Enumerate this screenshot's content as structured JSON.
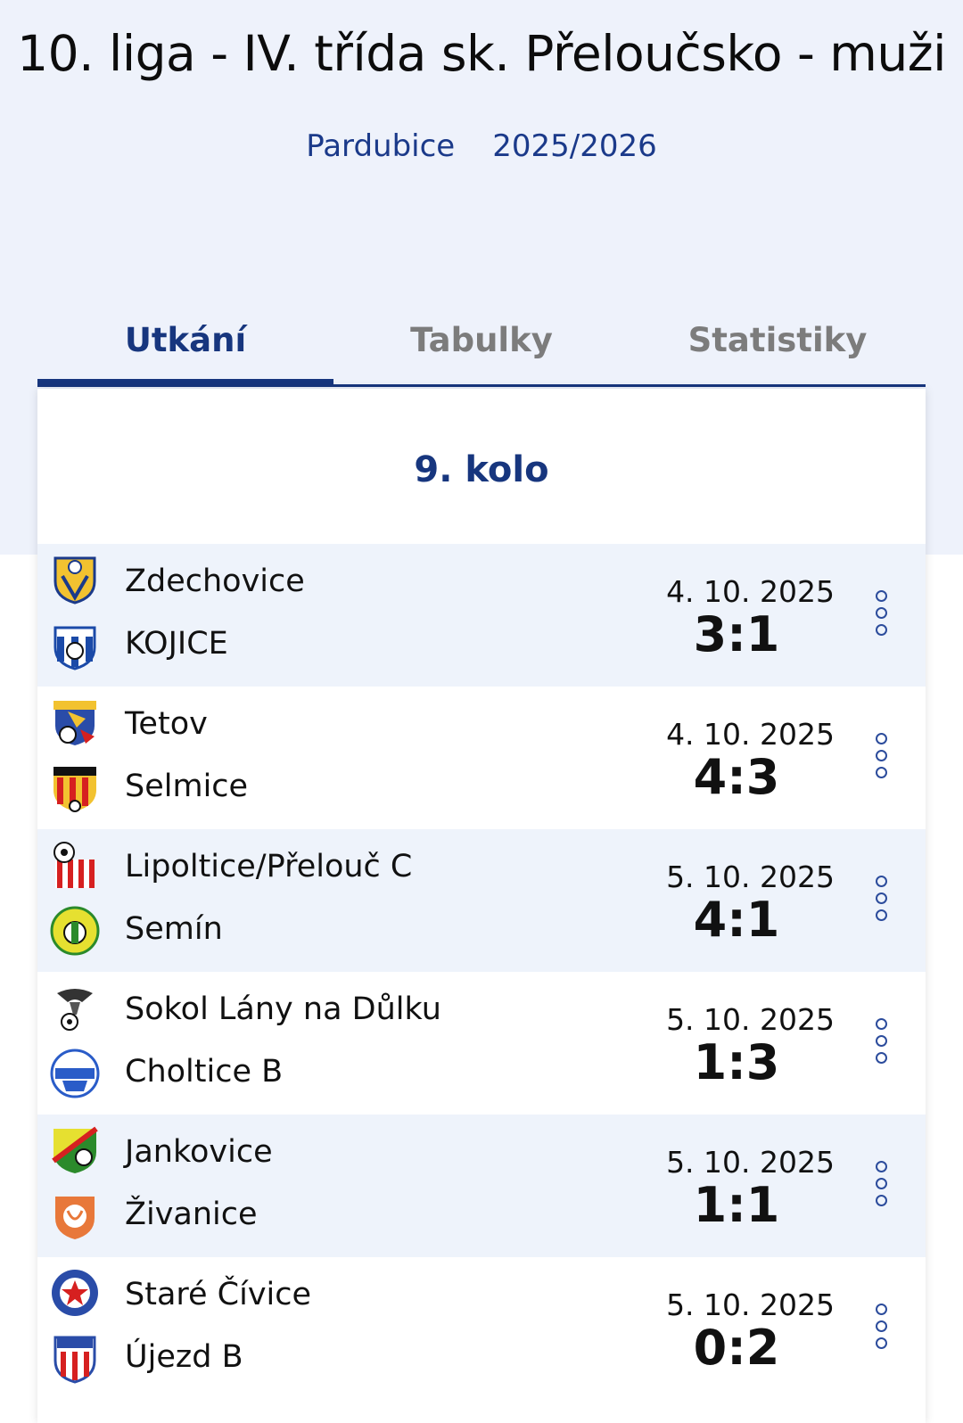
{
  "header": {
    "title": "10. liga - IV. třída sk. Přeloučsko - muži",
    "region": "Pardubice",
    "season": "2025/2026"
  },
  "tabs": [
    {
      "label": "Utkání",
      "active": true
    },
    {
      "label": "Tabulky",
      "active": false
    },
    {
      "label": "Statistiky",
      "active": false
    }
  ],
  "round": {
    "label": "9. kolo"
  },
  "matches": [
    {
      "home": "Zdechovice",
      "away": "KOJICE",
      "date": "4. 10. 2025",
      "score": "3:1",
      "home_logo": "zdechovice-crest-icon",
      "away_logo": "kojice-crest-icon"
    },
    {
      "home": "Tetov",
      "away": "Selmice",
      "date": "4. 10. 2025",
      "score": "4:3",
      "home_logo": "tetov-crest-icon",
      "away_logo": "selmice-crest-icon"
    },
    {
      "home": "Lipoltice/Přelouč C",
      "away": "Semín",
      "date": "5. 10. 2025",
      "score": "4:1",
      "home_logo": "lipoltice-crest-icon",
      "away_logo": "semin-crest-icon"
    },
    {
      "home": "Sokol Lány na Důlku",
      "away": "Choltice B",
      "date": "5. 10. 2025",
      "score": "1:3",
      "home_logo": "lany-crest-icon",
      "away_logo": "choltice-crest-icon"
    },
    {
      "home": "Jankovice",
      "away": "Živanice",
      "date": "5. 10. 2025",
      "score": "1:1",
      "home_logo": "jankovice-crest-icon",
      "away_logo": "zivanice-crest-icon"
    },
    {
      "home": "Staré Čívice",
      "away": "Újezd B",
      "date": "5. 10. 2025",
      "score": "0:2",
      "home_logo": "stare-civice-crest-icon",
      "away_logo": "ujezd-crest-icon"
    }
  ],
  "colors": {
    "accent": "#17367e",
    "header_bg": "#eef2fb",
    "row_alt_bg": "#eef3fb"
  }
}
